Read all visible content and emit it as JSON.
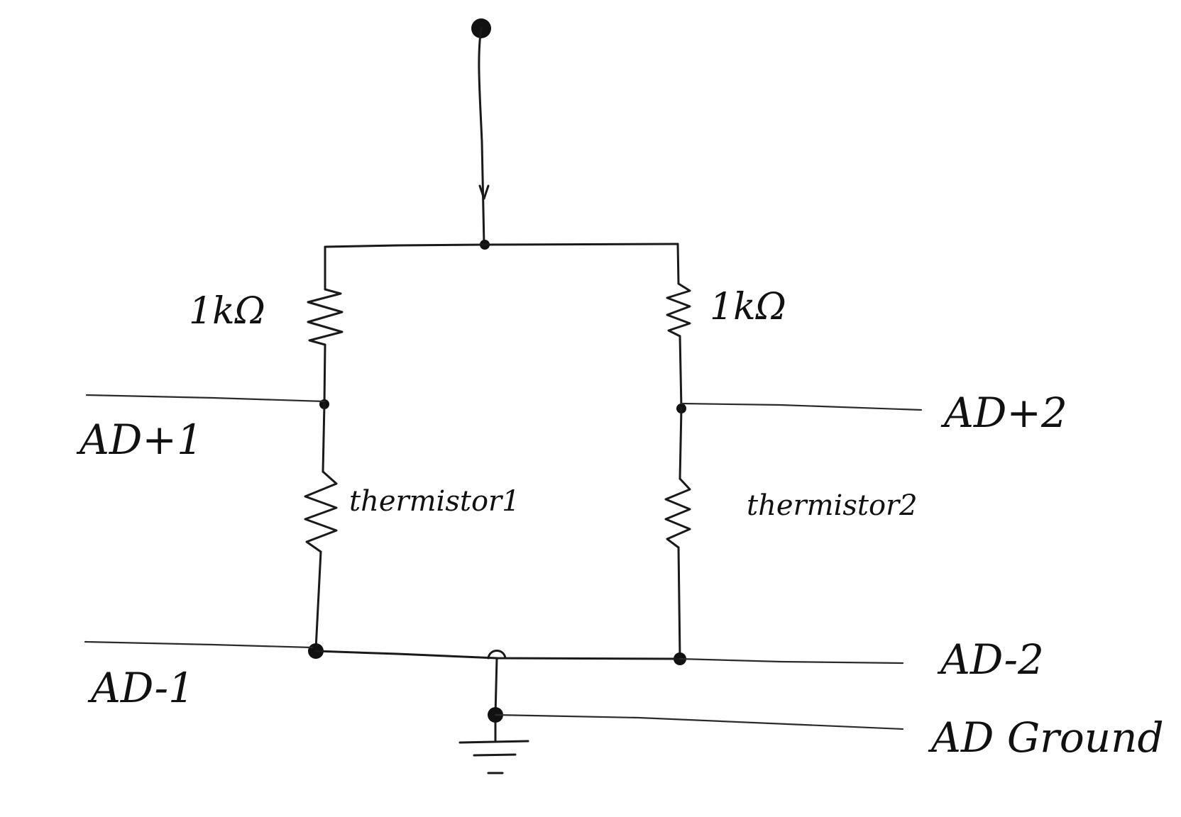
{
  "diagram": {
    "resistors": {
      "top_left_label": "1kΩ",
      "top_right_label": "1kΩ"
    },
    "thermistors": {
      "left_label": "thermistor1",
      "right_label": "thermistor2"
    },
    "ports": {
      "ad_plus_1": "AD+1",
      "ad_plus_2": "AD+2",
      "ad_minus_1": "AD-1",
      "ad_minus_2": "AD-2",
      "ad_ground": "AD Ground"
    },
    "colors": {
      "ink": "#111111",
      "paper": "#ffffff"
    }
  }
}
